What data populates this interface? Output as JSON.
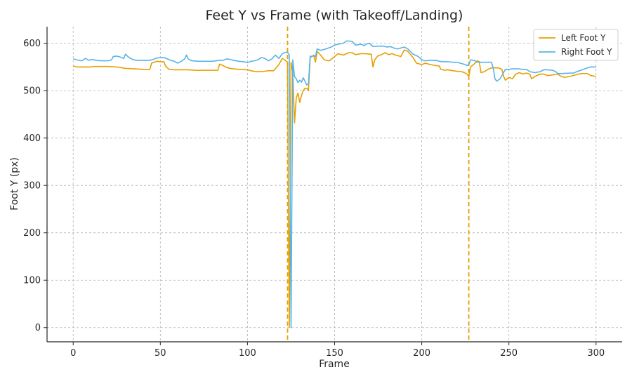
{
  "chart_data": {
    "type": "line",
    "title": "Feet Y vs Frame (with Takeoff/Landing)",
    "xlabel": "Frame",
    "ylabel": "Foot Y (px)",
    "xlim": [
      -15,
      315
    ],
    "ylim": [
      -30,
      635
    ],
    "xticks": [
      0,
      50,
      100,
      150,
      200,
      250,
      300
    ],
    "yticks": [
      0,
      100,
      200,
      300,
      400,
      500,
      600
    ],
    "grid": true,
    "legend_position": "top-right",
    "vlines": [
      {
        "x": 123,
        "color": "#E69F00",
        "style": "dashed"
      },
      {
        "x": 227,
        "color": "#E69F00",
        "style": "dashed"
      }
    ],
    "series": [
      {
        "name": "Left Foot Y",
        "color": "#E69F00",
        "points": [
          [
            0,
            552
          ],
          [
            2,
            550
          ],
          [
            10,
            550
          ],
          [
            12,
            551
          ],
          [
            20,
            551
          ],
          [
            25,
            550
          ],
          [
            30,
            547
          ],
          [
            35,
            546
          ],
          [
            40,
            545
          ],
          [
            44,
            545
          ],
          [
            45,
            558
          ],
          [
            48,
            562
          ],
          [
            50,
            561
          ],
          [
            52,
            561
          ],
          [
            53,
            552
          ],
          [
            55,
            545
          ],
          [
            58,
            544
          ],
          [
            62,
            544
          ],
          [
            66,
            544
          ],
          [
            70,
            543
          ],
          [
            75,
            543
          ],
          [
            80,
            543
          ],
          [
            83,
            543
          ],
          [
            84,
            556
          ],
          [
            86,
            553
          ],
          [
            88,
            549
          ],
          [
            90,
            547
          ],
          [
            92,
            546
          ],
          [
            95,
            545
          ],
          [
            100,
            544
          ],
          [
            102,
            542
          ],
          [
            105,
            540
          ],
          [
            108,
            540
          ],
          [
            112,
            542
          ],
          [
            115,
            542
          ],
          [
            118,
            555
          ],
          [
            120,
            568
          ],
          [
            122,
            563
          ],
          [
            123,
            560
          ],
          [
            124,
            0
          ],
          [
            125,
            560
          ],
          [
            126,
            540
          ],
          [
            127,
            432
          ],
          [
            128,
            485
          ],
          [
            129,
            495
          ],
          [
            130,
            475
          ],
          [
            131,
            490
          ],
          [
            132,
            500
          ],
          [
            133,
            505
          ],
          [
            134,
            505
          ],
          [
            135,
            500
          ],
          [
            136,
            570
          ],
          [
            137,
            572
          ],
          [
            138,
            575
          ],
          [
            139,
            560
          ],
          [
            140,
            583
          ],
          [
            142,
            575
          ],
          [
            144,
            565
          ],
          [
            147,
            563
          ],
          [
            150,
            572
          ],
          [
            152,
            578
          ],
          [
            155,
            575
          ],
          [
            158,
            580
          ],
          [
            160,
            580
          ],
          [
            162,
            576
          ],
          [
            165,
            578
          ],
          [
            168,
            578
          ],
          [
            170,
            577
          ],
          [
            171,
            577
          ],
          [
            172,
            550
          ],
          [
            173,
            565
          ],
          [
            175,
            574
          ],
          [
            177,
            576
          ],
          [
            179,
            580
          ],
          [
            181,
            576
          ],
          [
            183,
            578
          ],
          [
            185,
            575
          ],
          [
            188,
            572
          ],
          [
            190,
            586
          ],
          [
            192,
            583
          ],
          [
            195,
            570
          ],
          [
            197,
            558
          ],
          [
            200,
            555
          ],
          [
            202,
            558
          ],
          [
            205,
            555
          ],
          [
            208,
            553
          ],
          [
            210,
            552
          ],
          [
            211,
            545
          ],
          [
            213,
            543
          ],
          [
            215,
            544
          ],
          [
            218,
            542
          ],
          [
            220,
            541
          ],
          [
            223,
            540
          ],
          [
            225,
            537
          ],
          [
            226,
            535
          ],
          [
            227,
            530
          ],
          [
            228,
            550
          ],
          [
            230,
            556
          ],
          [
            232,
            563
          ],
          [
            233,
            561
          ],
          [
            234,
            538
          ],
          [
            236,
            540
          ],
          [
            238,
            545
          ],
          [
            240,
            548
          ],
          [
            242,
            548
          ],
          [
            244,
            548
          ],
          [
            246,
            545
          ],
          [
            247,
            530
          ],
          [
            248,
            522
          ],
          [
            250,
            528
          ],
          [
            252,
            525
          ],
          [
            254,
            535
          ],
          [
            256,
            538
          ],
          [
            258,
            535
          ],
          [
            260,
            537
          ],
          [
            262,
            535
          ],
          [
            263,
            525
          ],
          [
            265,
            530
          ],
          [
            268,
            535
          ],
          [
            270,
            535
          ],
          [
            272,
            532
          ],
          [
            275,
            533
          ],
          [
            278,
            535
          ],
          [
            280,
            530
          ],
          [
            282,
            528
          ],
          [
            285,
            530
          ],
          [
            288,
            533
          ],
          [
            290,
            535
          ],
          [
            292,
            536
          ],
          [
            295,
            536
          ],
          [
            297,
            532
          ],
          [
            300,
            530
          ]
        ]
      },
      {
        "name": "Right Foot Y",
        "color": "#56B4E9",
        "points": [
          [
            0,
            567
          ],
          [
            2,
            565
          ],
          [
            5,
            563
          ],
          [
            7,
            568
          ],
          [
            9,
            564
          ],
          [
            11,
            566
          ],
          [
            13,
            564
          ],
          [
            16,
            563
          ],
          [
            20,
            563
          ],
          [
            22,
            565
          ],
          [
            23,
            572
          ],
          [
            25,
            573
          ],
          [
            27,
            571
          ],
          [
            29,
            568
          ],
          [
            30,
            577
          ],
          [
            32,
            570
          ],
          [
            34,
            566
          ],
          [
            36,
            564
          ],
          [
            40,
            564
          ],
          [
            44,
            564
          ],
          [
            46,
            566
          ],
          [
            48,
            569
          ],
          [
            52,
            570
          ],
          [
            54,
            567
          ],
          [
            56,
            564
          ],
          [
            58,
            562
          ],
          [
            60,
            558
          ],
          [
            62,
            562
          ],
          [
            64,
            567
          ],
          [
            65,
            575
          ],
          [
            66,
            567
          ],
          [
            68,
            563
          ],
          [
            72,
            562
          ],
          [
            76,
            562
          ],
          [
            80,
            562
          ],
          [
            84,
            564
          ],
          [
            86,
            564
          ],
          [
            88,
            567
          ],
          [
            90,
            566
          ],
          [
            92,
            564
          ],
          [
            95,
            562
          ],
          [
            98,
            561
          ],
          [
            100,
            559
          ],
          [
            102,
            562
          ],
          [
            104,
            563
          ],
          [
            106,
            565
          ],
          [
            108,
            570
          ],
          [
            110,
            568
          ],
          [
            112,
            563
          ],
          [
            114,
            567
          ],
          [
            116,
            575
          ],
          [
            118,
            568
          ],
          [
            120,
            578
          ],
          [
            122,
            581
          ],
          [
            123,
            581
          ],
          [
            124,
            575
          ],
          [
            125,
            0
          ],
          [
            126,
            565
          ],
          [
            127,
            530
          ],
          [
            128,
            525
          ],
          [
            129,
            517
          ],
          [
            130,
            522
          ],
          [
            131,
            518
          ],
          [
            132,
            527
          ],
          [
            133,
            520
          ],
          [
            134,
            512
          ],
          [
            135,
            515
          ],
          [
            136,
            573
          ],
          [
            137,
            572
          ],
          [
            138,
            574
          ],
          [
            139,
            572
          ],
          [
            140,
            588
          ],
          [
            142,
            585
          ],
          [
            145,
            588
          ],
          [
            148,
            592
          ],
          [
            150,
            596
          ],
          [
            152,
            598
          ],
          [
            155,
            600
          ],
          [
            157,
            605
          ],
          [
            160,
            604
          ],
          [
            162,
            596
          ],
          [
            165,
            598
          ],
          [
            167,
            595
          ],
          [
            168,
            598
          ],
          [
            170,
            600
          ],
          [
            172,
            593
          ],
          [
            175,
            594
          ],
          [
            178,
            594
          ],
          [
            180,
            592
          ],
          [
            182,
            593
          ],
          [
            184,
            590
          ],
          [
            186,
            588
          ],
          [
            188,
            590
          ],
          [
            190,
            592
          ],
          [
            192,
            588
          ],
          [
            195,
            577
          ],
          [
            198,
            572
          ],
          [
            200,
            565
          ],
          [
            202,
            563
          ],
          [
            205,
            564
          ],
          [
            208,
            564
          ],
          [
            210,
            562
          ],
          [
            212,
            561
          ],
          [
            215,
            561
          ],
          [
            218,
            560
          ],
          [
            220,
            560
          ],
          [
            222,
            558
          ],
          [
            225,
            555
          ],
          [
            226,
            553
          ],
          [
            227,
            555
          ],
          [
            228,
            565
          ],
          [
            230,
            564
          ],
          [
            232,
            560
          ],
          [
            235,
            560
          ],
          [
            238,
            560
          ],
          [
            240,
            560
          ],
          [
            241,
            548
          ],
          [
            242,
            525
          ],
          [
            243,
            520
          ],
          [
            245,
            525
          ],
          [
            248,
            545
          ],
          [
            250,
            545
          ],
          [
            252,
            546
          ],
          [
            255,
            546
          ],
          [
            258,
            545
          ],
          [
            260,
            545
          ],
          [
            262,
            540
          ],
          [
            265,
            538
          ],
          [
            268,
            540
          ],
          [
            270,
            544
          ],
          [
            272,
            544
          ],
          [
            275,
            543
          ],
          [
            277,
            540
          ],
          [
            278,
            536
          ],
          [
            280,
            536
          ],
          [
            285,
            537
          ],
          [
            287,
            537
          ],
          [
            289,
            540
          ],
          [
            292,
            544
          ],
          [
            295,
            548
          ],
          [
            297,
            550
          ],
          [
            300,
            550
          ]
        ]
      }
    ]
  }
}
